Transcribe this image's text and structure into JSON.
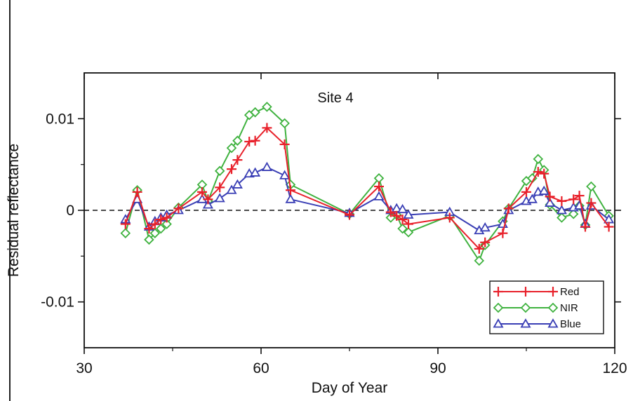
{
  "chart_data": {
    "type": "line",
    "title": "Site 4",
    "xlabel": "Day of Year",
    "ylabel": "Residual reflectance",
    "xlim": [
      30,
      120
    ],
    "ylim": [
      -0.015,
      0.015
    ],
    "x_ticks": [
      30,
      60,
      90,
      120
    ],
    "x_tick_labels": [
      "30",
      "60",
      "90",
      "120"
    ],
    "y_ticks": [
      -0.01,
      0,
      0.01
    ],
    "y_tick_labels": [
      "-0.01",
      "0",
      "0.01"
    ],
    "reference_line": {
      "y": 0,
      "style": "dashed"
    },
    "grid": false,
    "legend_position": "bottom-right",
    "series": [
      {
        "name": "Red",
        "color": "#e8202a",
        "marker": "plus",
        "x": [
          37,
          39,
          41,
          42,
          43,
          44,
          46,
          50,
          51,
          53,
          55,
          56,
          58,
          59,
          61,
          64,
          65,
          75,
          80,
          82,
          83,
          84,
          85,
          92,
          97,
          98,
          101,
          102,
          105,
          107,
          108,
          109,
          111,
          113,
          114,
          115,
          116,
          119
        ],
        "y": [
          -0.0015,
          0.002,
          -0.002,
          -0.0015,
          -0.001,
          -0.0008,
          0.0002,
          0.002,
          0.0012,
          0.0025,
          0.0045,
          0.0055,
          0.0075,
          0.0076,
          0.009,
          0.0072,
          0.0022,
          -0.0005,
          0.0026,
          -0.0002,
          -0.0006,
          -0.001,
          -0.0015,
          -0.0008,
          -0.0042,
          -0.0035,
          -0.0025,
          0.0002,
          0.002,
          0.0042,
          0.004,
          0.0015,
          0.001,
          0.0012,
          0.0016,
          -0.0018,
          0.0008,
          -0.0018
        ]
      },
      {
        "name": "NIR",
        "color": "#3fb23f",
        "marker": "diamond",
        "x": [
          37,
          39,
          41,
          42,
          43,
          44,
          46,
          50,
          51,
          53,
          55,
          56,
          58,
          59,
          61,
          64,
          65,
          75,
          80,
          82,
          83,
          84,
          85,
          92,
          97,
          98,
          101,
          102,
          105,
          106,
          107,
          108,
          109,
          111,
          113,
          114,
          115,
          116,
          119
        ],
        "y": [
          -0.0025,
          0.0022,
          -0.0032,
          -0.0025,
          -0.002,
          -0.0015,
          0.0003,
          0.0028,
          0.001,
          0.0043,
          0.0068,
          0.0076,
          0.0104,
          0.0107,
          0.0113,
          0.0095,
          0.0028,
          -0.0004,
          0.0035,
          -0.0008,
          -0.0005,
          -0.002,
          -0.0024,
          -0.0006,
          -0.0055,
          -0.0038,
          -0.0012,
          0.0002,
          0.0032,
          0.0035,
          0.0056,
          0.0044,
          0.0006,
          -0.0008,
          -0.0004,
          0.0005,
          -0.0016,
          0.0026,
          -0.0006
        ]
      },
      {
        "name": "Blue",
        "color": "#3a3fb5",
        "marker": "triangle",
        "x": [
          37,
          39,
          41,
          42,
          43,
          44,
          46,
          50,
          51,
          53,
          55,
          56,
          58,
          59,
          61,
          64,
          65,
          75,
          80,
          82,
          83,
          84,
          85,
          92,
          97,
          98,
          101,
          102,
          105,
          106,
          107,
          108,
          109,
          111,
          113,
          114,
          115,
          116,
          119
        ],
        "y": [
          -0.001,
          0.0012,
          -0.0018,
          -0.0012,
          -0.0008,
          -0.0005,
          0,
          0.0012,
          0.0006,
          0.0013,
          0.0022,
          0.0028,
          0.004,
          0.0041,
          0.0047,
          0.0038,
          0.0012,
          -0.0003,
          0.0015,
          0,
          0.0002,
          0.0001,
          -0.0005,
          -0.0002,
          -0.0022,
          -0.0019,
          -0.0015,
          0,
          0.001,
          0.0012,
          0.002,
          0.0021,
          0.0008,
          0,
          0.0003,
          0.0005,
          -0.0015,
          0.0005,
          -0.001
        ]
      }
    ]
  }
}
